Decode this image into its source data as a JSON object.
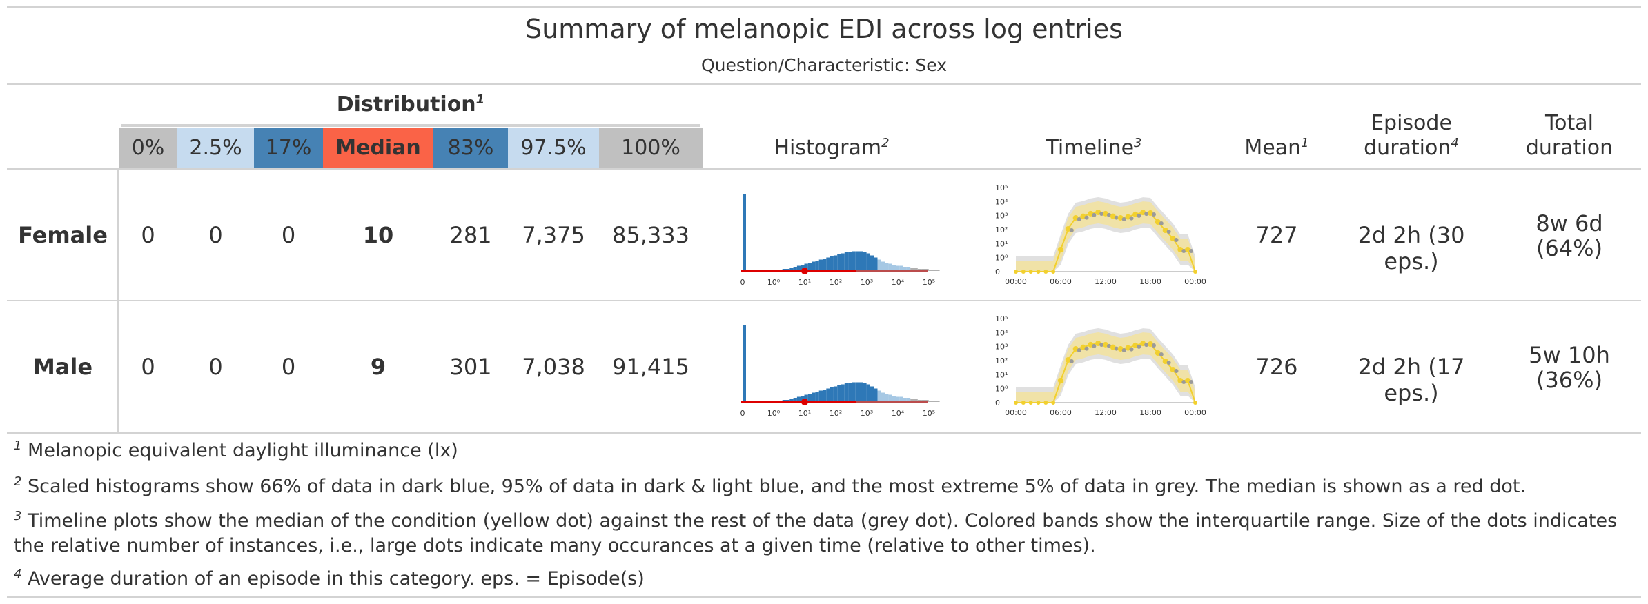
{
  "title": "Summary of melanopic EDI across log entries",
  "subtitle": "Question/Characteristic: Sex",
  "header": {
    "distribution": "Distribution",
    "distribution_fn": "1",
    "quantiles": [
      {
        "label": "0%",
        "color": "#c0c0c0"
      },
      {
        "label": "2.5%",
        "color": "#c6dbef"
      },
      {
        "label": "17%",
        "color": "#4682b4"
      },
      {
        "label": "Median",
        "color": "#fa6347"
      },
      {
        "label": "83%",
        "color": "#4682b4"
      },
      {
        "label": "97.5%",
        "color": "#c6dbef"
      },
      {
        "label": "100%",
        "color": "#c0c0c0"
      }
    ],
    "histogram": "Histogram",
    "histogram_fn": "2",
    "timeline": "Timeline",
    "timeline_fn": "3",
    "mean": "Mean",
    "mean_fn": "1",
    "episode_l1": "Episode",
    "episode_l2": "duration",
    "episode_fn": "4",
    "total_l1": "Total",
    "total_l2": "duration"
  },
  "rows": [
    {
      "label": "Female",
      "q0": "0",
      "q2_5": "0",
      "q17": "0",
      "median": "10",
      "q83": "281",
      "q97_5": "7,375",
      "q100": "85,333",
      "mean": "727",
      "episode": "2d 2h (30 eps.)",
      "total_l1": "8w 6d",
      "total_l2": "(64%)"
    },
    {
      "label": "Male",
      "q0": "0",
      "q2_5": "0",
      "q17": "0",
      "median": "9",
      "q83": "301",
      "q97_5": "7,038",
      "q100": "91,415",
      "mean": "726",
      "episode": "2d 2h (17 eps.)",
      "total_l1": "5w 10h",
      "total_l2": "(36%)"
    }
  ],
  "histogram_axis": {
    "ticks": [
      "0",
      "10⁰",
      "10¹",
      "10²",
      "10³",
      "10⁴",
      "10⁵"
    ]
  },
  "timeline_axis": {
    "yticks": [
      "10⁵",
      "10⁴",
      "10³",
      "10²",
      "10¹",
      "10⁰",
      "0"
    ],
    "xticks": [
      "00:00",
      "06:00",
      "12:00",
      "18:00",
      "00:00"
    ]
  },
  "colors": {
    "dark_blue": "#2e78b7",
    "light_blue": "#a6c8e4",
    "grey": "#b0b0b0",
    "median_dot": "#dd0000",
    "yellow": "#f2d02f",
    "yellow_band": "#f6e38f",
    "grey_band": "#d8d8d8",
    "grey_dot": "#9a9a9a"
  },
  "footnotes": [
    {
      "mark": "1",
      "text": "Melanopic equivalent daylight illuminance (lx)"
    },
    {
      "mark": "2",
      "text": "Scaled histograms show 66% of data in dark blue, 95% of data in dark & light blue, and the most extreme 5% of data in grey. The median is shown as a red dot."
    },
    {
      "mark": "3",
      "text": "Timeline plots show the median of the condition (yellow dot) against the rest of the data (grey dot). Colored bands show the interquartile range. Size of the dots indicates the relative number of instances, i.e., large dots indicate many occurances at a given time (relative to other times)."
    },
    {
      "mark": "4",
      "text": "Average duration of an episode in this category. eps. = Episode(s)"
    }
  ]
}
